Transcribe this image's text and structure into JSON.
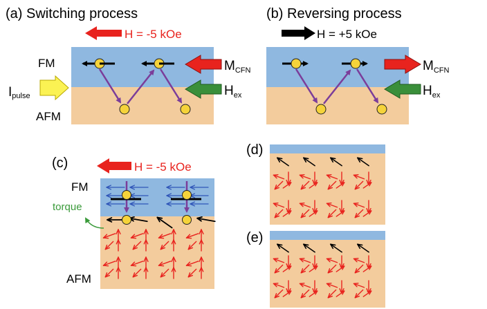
{
  "panels": {
    "a": {
      "label": "(a) Switching process",
      "field": "H = -5 kOe",
      "fm": "FM",
      "afm": "AFM",
      "ipulse": "I",
      "ipulse_sub": "pulse",
      "mcfn": "M",
      "mcfn_sub": "CFN",
      "hex": "H",
      "hex_sub": "ex"
    },
    "b": {
      "label": "(b) Reversing process",
      "field": "H = +5 kOe",
      "mcfn": "M",
      "mcfn_sub": "CFN",
      "hex": "H",
      "hex_sub": "ex"
    },
    "c": {
      "label": "(c)",
      "field": "H = -5 kOe",
      "fm": "FM",
      "afm": "AFM",
      "torque": "torque"
    },
    "d": {
      "label": "(d)"
    },
    "e": {
      "label": "(e)"
    }
  },
  "colors": {
    "fm_layer": "#8fb8e0",
    "afm_layer": "#f3cc9d",
    "red_arrow": "#e8231e",
    "green_arrow": "#3a8f3a",
    "yellow_arrow": "#fbf253",
    "purple": "#7b3d9a",
    "blue_spin": "#2f55b8",
    "red_spin": "#e8231e",
    "torque_text": "#3a9a3a"
  }
}
